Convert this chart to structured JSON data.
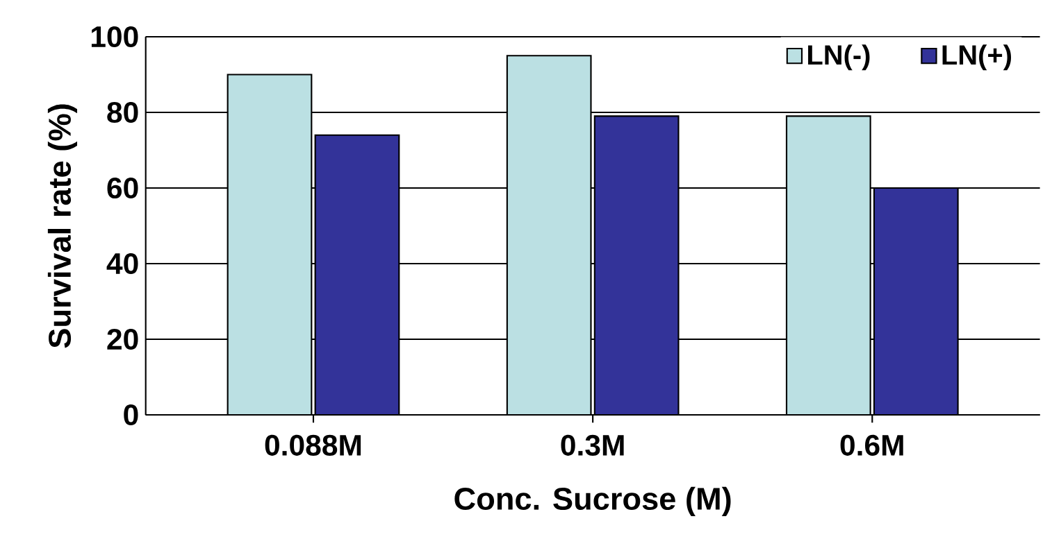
{
  "chart_data": {
    "type": "bar",
    "xlabel": "Conc. Sucrose (M)",
    "ylabel": "Survival rate (%)",
    "categories": [
      "0.088M",
      "0.3M",
      "0.6M"
    ],
    "series": [
      {
        "name": "LN(-)",
        "color": "#bbe0e3",
        "values": [
          90,
          95,
          79
        ]
      },
      {
        "name": "LN(+)",
        "color": "#333399",
        "values": [
          74,
          79,
          60
        ]
      }
    ],
    "ylim": [
      0,
      100
    ],
    "yticks": [
      0,
      20,
      40,
      60,
      80,
      100
    ],
    "grid": "y",
    "legend": "top right"
  }
}
